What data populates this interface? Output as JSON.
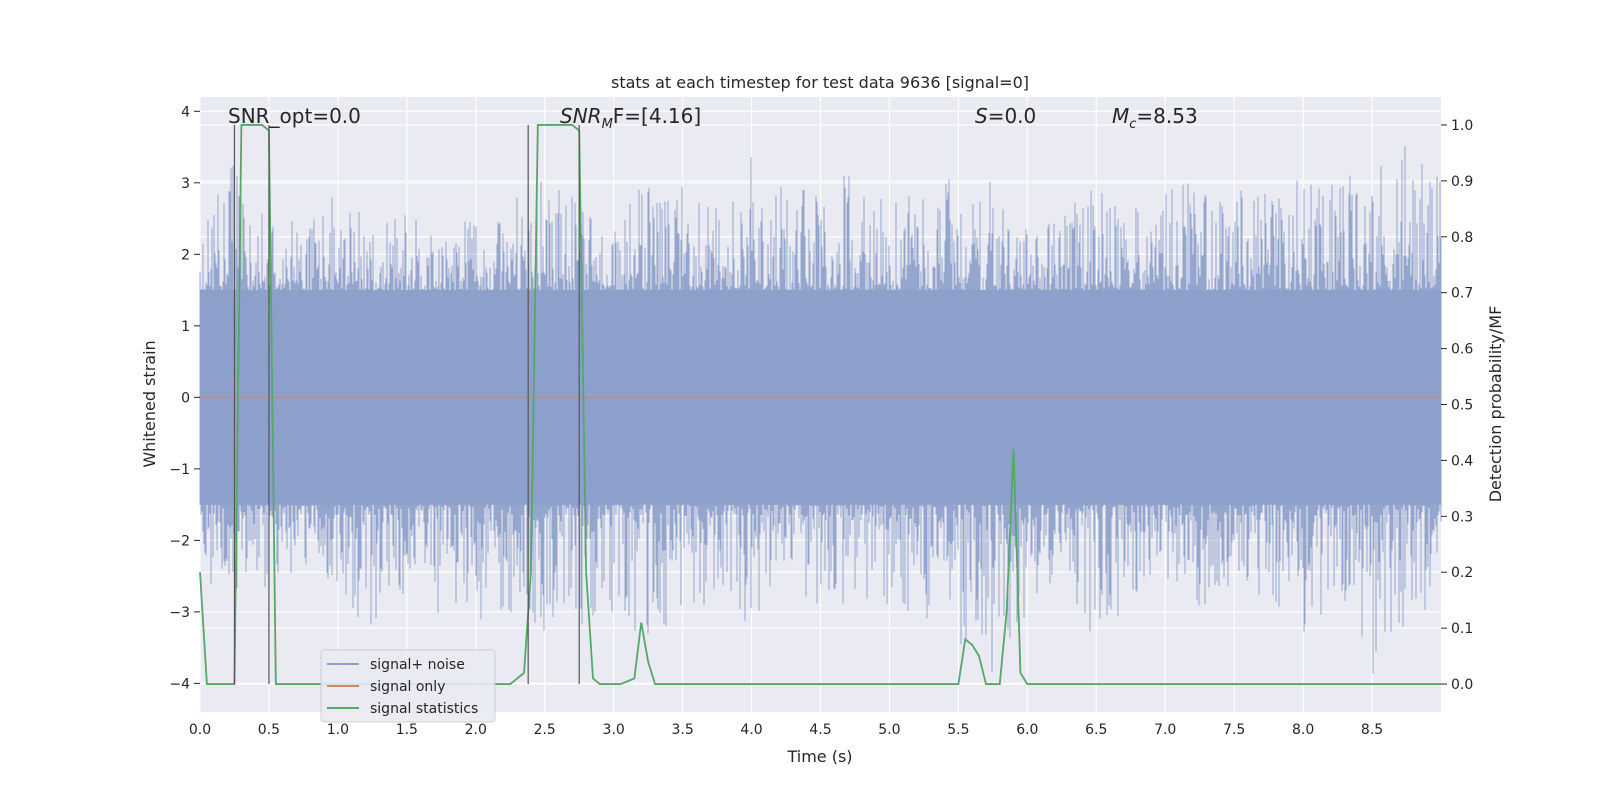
{
  "chart_data": {
    "type": "line",
    "title": "stats at each timestep for test data 9636 [signal=0]",
    "xlabel": "Time (s)",
    "ylabel_left": "Whitened strain",
    "ylabel_right": "Detection probability/MF",
    "xlim": [
      0.0,
      9.0
    ],
    "ylim_left": [
      -4.4,
      4.2
    ],
    "ylim_right": [
      -0.05,
      1.05
    ],
    "x_ticks": [
      "0.0",
      "0.5",
      "1.0",
      "1.5",
      "2.0",
      "2.5",
      "3.0",
      "3.5",
      "4.0",
      "4.5",
      "5.0",
      "5.5",
      "6.0",
      "6.5",
      "7.0",
      "7.5",
      "8.0",
      "8.5"
    ],
    "y_ticks_left": [
      "4",
      "3",
      "2",
      "1",
      "0",
      "−1",
      "−2",
      "−3",
      "−4"
    ],
    "y_ticks_right": [
      "1.0",
      "0.9",
      "0.8",
      "0.7",
      "0.6",
      "0.5",
      "0.4",
      "0.3",
      "0.2",
      "0.1",
      "0.0"
    ],
    "grid": true,
    "legend_position": "lower-left",
    "annotations": [
      {
        "text": "SNR_opt=0.0",
        "x": 0.2
      },
      {
        "base": "SNR",
        "sub": "M",
        "rest": "F=[4.16]",
        "x": 2.6
      },
      {
        "base": "S",
        "rest": "=0.0",
        "x": 5.6
      },
      {
        "base": "M",
        "sub": "c",
        "rest": "=8.53",
        "x": 6.6
      }
    ],
    "vertical_markers": [
      0.25,
      0.5,
      2.38,
      2.75
    ],
    "series": [
      {
        "name": "signal+ noise",
        "color": "#8c9fca",
        "axis": "left",
        "envelope": {
          "x": [
            0.0,
            0.25,
            0.5,
            0.75,
            1.0,
            1.25,
            1.5,
            1.75,
            2.0,
            2.25,
            2.5,
            2.75,
            3.0,
            3.25,
            3.5,
            3.75,
            4.0,
            4.25,
            4.5,
            4.75,
            5.0,
            5.25,
            5.5,
            5.75,
            6.0,
            6.25,
            6.5,
            6.75,
            7.0,
            7.25,
            7.5,
            7.75,
            8.0,
            8.25,
            8.5,
            8.75,
            9.0
          ],
          "upper": [
            2.3,
            3.4,
            3.2,
            2.3,
            3.0,
            2.4,
            2.6,
            2.2,
            2.6,
            2.8,
            3.2,
            2.7,
            2.4,
            3.1,
            3.0,
            2.7,
            3.4,
            2.9,
            3.1,
            3.1,
            2.7,
            2.9,
            3.2,
            3.1,
            2.4,
            2.6,
            3.0,
            2.6,
            3.0,
            3.0,
            2.9,
            2.9,
            3.1,
            3.0,
            3.3,
            3.8,
            3.0
          ],
          "lower": [
            -2.6,
            -2.7,
            -2.8,
            -2.3,
            -2.9,
            -3.3,
            -2.7,
            -3.1,
            -3.3,
            -3.0,
            -3.4,
            -3.2,
            -3.0,
            -3.5,
            -3.4,
            -2.9,
            -3.2,
            -2.6,
            -3.0,
            -2.9,
            -3.0,
            -3.2,
            -3.6,
            -4.0,
            -3.0,
            -2.7,
            -3.4,
            -2.9,
            -2.6,
            -3.0,
            -2.7,
            -2.8,
            -3.3,
            -3.1,
            -4.0,
            -3.2,
            -2.8
          ],
          "band": [
            -1.5,
            1.5
          ]
        }
      },
      {
        "name": "signal only",
        "color": "#dd8452",
        "axis": "left",
        "x": [
          0.0,
          9.0
        ],
        "y": [
          0.0,
          0.0
        ]
      },
      {
        "name": "signal statistics",
        "color": "#55a868",
        "axis": "right",
        "x": [
          0.0,
          0.05,
          0.1,
          0.2,
          0.25,
          0.3,
          0.35,
          0.45,
          0.5,
          0.55,
          0.6,
          2.25,
          2.35,
          2.4,
          2.45,
          2.55,
          2.7,
          2.75,
          2.8,
          2.85,
          2.9,
          3.05,
          3.15,
          3.2,
          3.25,
          3.3,
          3.4,
          5.4,
          5.5,
          5.55,
          5.6,
          5.65,
          5.7,
          5.8,
          5.85,
          5.9,
          5.95,
          6.0,
          6.1,
          9.0
        ],
        "y": [
          0.2,
          0.0,
          0.0,
          0.0,
          0.0,
          1.0,
          1.0,
          1.0,
          0.99,
          0.0,
          0.0,
          0.0,
          0.02,
          0.2,
          1.0,
          1.0,
          1.0,
          0.99,
          0.2,
          0.01,
          0.0,
          0.0,
          0.01,
          0.11,
          0.04,
          0.0,
          0.0,
          0.0,
          0.0,
          0.08,
          0.07,
          0.05,
          0.0,
          0.0,
          0.13,
          0.42,
          0.02,
          0.0,
          0.0,
          0.0
        ]
      }
    ]
  }
}
